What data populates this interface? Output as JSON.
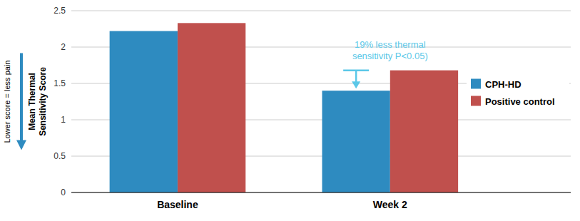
{
  "chart_data": {
    "type": "bar",
    "categories": [
      "Baseline",
      "Week 2"
    ],
    "series": [
      {
        "name": "CPH-HD",
        "color": "#2E8BC0",
        "values": [
          2.22,
          1.4
        ]
      },
      {
        "name": "Positive control",
        "color": "#C0504D",
        "values": [
          2.33,
          1.68
        ]
      }
    ],
    "ylabel": "Mean Thermal\nSensitivity Score",
    "ylim": [
      0,
      2.5
    ],
    "yticks": [
      0,
      0.5,
      1,
      1.5,
      2,
      2.5
    ],
    "grid": true,
    "legend": "right",
    "annotation": {
      "lines": [
        "19% less thermal",
        "sensitivity P<0.05)"
      ],
      "color": "#5BC8E8"
    },
    "side_label": "Lower score = less pain"
  }
}
